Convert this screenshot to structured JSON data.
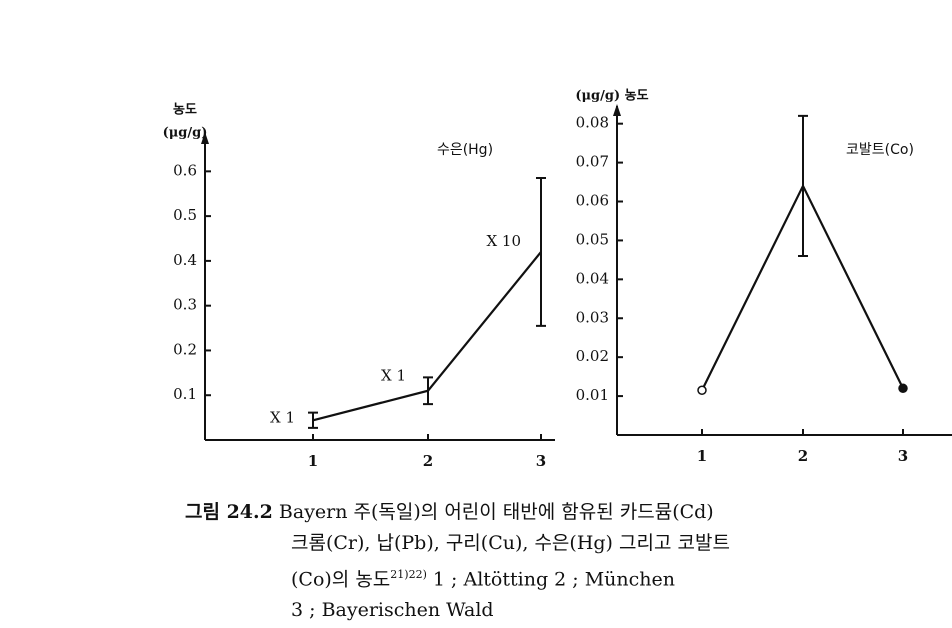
{
  "chart_data": [
    {
      "type": "line",
      "title": "수은(Hg)",
      "ylabel": [
        "농도",
        "(μg/g)"
      ],
      "categories": [
        "1",
        "2",
        "3"
      ],
      "series": [
        {
          "color": "#111111",
          "values": [
            0.044,
            0.11,
            0.42
          ],
          "errors": [
            0.017,
            0.03,
            0.165
          ],
          "point_labels": [
            "X 1",
            "X 1",
            "X 10"
          ]
        }
      ],
      "ylim": [
        0,
        0.67
      ],
      "yticks": [
        0.1,
        0.2,
        0.3,
        0.4,
        0.5,
        0.6
      ]
    },
    {
      "type": "line",
      "title": "코발트(Co)",
      "ylabel": [
        "(μg/g) 농도"
      ],
      "categories": [
        "1",
        "2",
        "3"
      ],
      "series": [
        {
          "color": "#111111",
          "values": [
            0.0115,
            0.064,
            0.012
          ],
          "errors": [
            null,
            0.018,
            null
          ]
        }
      ],
      "ylim": [
        0,
        0.083
      ],
      "yticks": [
        0.01,
        0.02,
        0.03,
        0.04,
        0.05,
        0.06,
        0.07,
        0.08
      ]
    }
  ],
  "caption": {
    "label": "그림 24.2",
    "lines": [
      "Bayern 주(독일)의 어린이 태반에 함유된 카드뮴(Cd)",
      "크롬(Cr), 납(Pb), 구리(Cu), 수은(Hg) 그리고 코발트"
    ],
    "line3": "(Co)의 농도",
    "refs": "21)22)",
    "line3_rest": "1 ; Altötting 2 ; München",
    "line4": "3 ; Bayerischen Wald"
  }
}
